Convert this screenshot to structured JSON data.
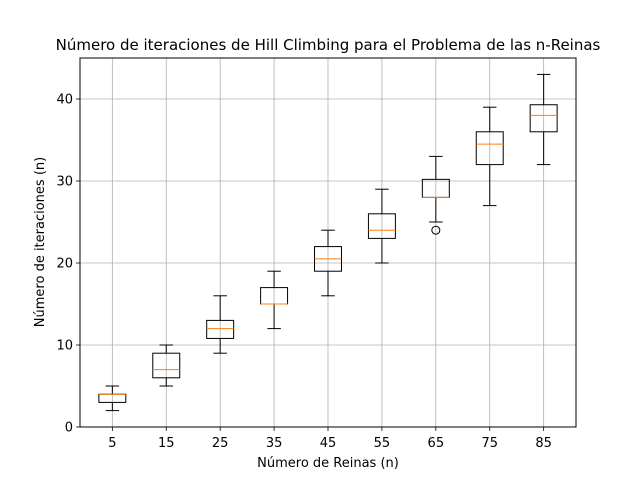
{
  "chart_data": {
    "type": "box",
    "title": "Número de iteraciones de Hill Climbing para el Problema de las n-Reinas",
    "xlabel": "Número de Reinas (n)",
    "ylabel": "Número de iteraciones (n)",
    "ylim": [
      0,
      45
    ],
    "yticks": [
      0,
      10,
      20,
      30,
      40
    ],
    "grid": true,
    "categories": [
      "5",
      "15",
      "25",
      "35",
      "45",
      "55",
      "65",
      "75",
      "85"
    ],
    "boxes": [
      {
        "whislo": 2,
        "q1": 3,
        "med": 4,
        "q3": 4,
        "whishi": 5,
        "fliers": []
      },
      {
        "whislo": 5,
        "q1": 6,
        "med": 7,
        "q3": 9,
        "whishi": 10,
        "fliers": []
      },
      {
        "whislo": 9,
        "q1": 10.8,
        "med": 12,
        "q3": 13,
        "whishi": 16,
        "fliers": []
      },
      {
        "whislo": 12,
        "q1": 15,
        "med": 15,
        "q3": 17,
        "whishi": 19,
        "fliers": []
      },
      {
        "whislo": 16,
        "q1": 19,
        "med": 20.5,
        "q3": 22,
        "whishi": 24,
        "fliers": []
      },
      {
        "whislo": 20,
        "q1": 23,
        "med": 24,
        "q3": 26,
        "whishi": 29,
        "fliers": []
      },
      {
        "whislo": 25,
        "q1": 28,
        "med": 28,
        "q3": 30.2,
        "whishi": 33,
        "fliers": [
          24
        ]
      },
      {
        "whislo": 27,
        "q1": 32,
        "med": 34.5,
        "q3": 36,
        "whishi": 39,
        "fliers": []
      },
      {
        "whislo": 32,
        "q1": 36,
        "med": 38,
        "q3": 39.3,
        "whishi": 43,
        "fliers": []
      }
    ],
    "colors": {
      "box": "#000000",
      "median": "#ff7f0e",
      "grid": "#b0b0b0"
    }
  }
}
